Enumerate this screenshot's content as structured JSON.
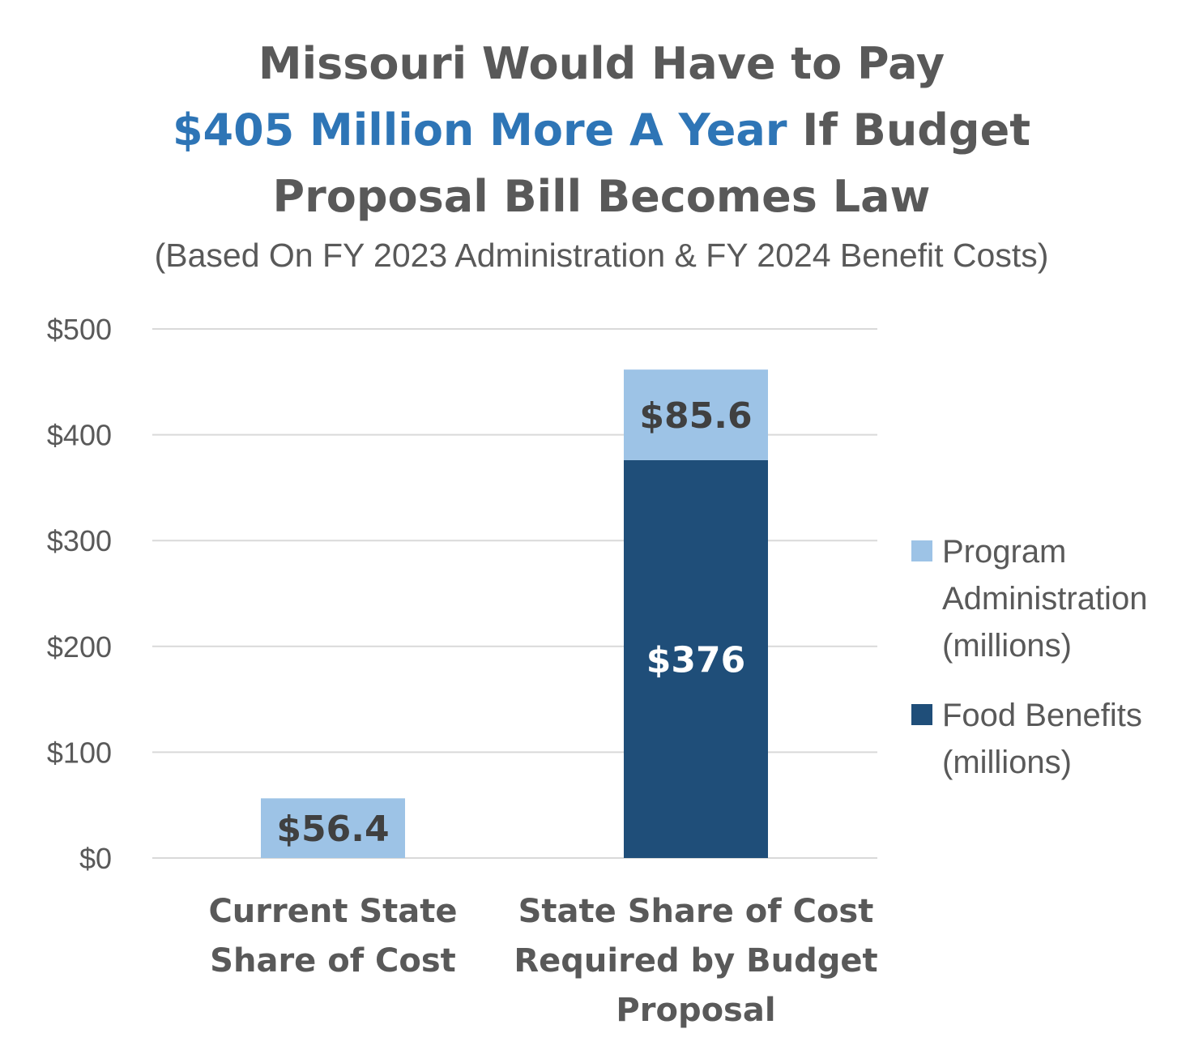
{
  "title": {
    "line1": "Missouri Would Have to Pay",
    "line2_highlight": "$405 Million More A Year",
    "line2_rest": " If Budget",
    "line3": "Proposal Bill Becomes Law"
  },
  "subtitle": "(Based On FY 2023 Administration & FY 2024 Benefit Costs)",
  "colors": {
    "highlight": "#2e75b6",
    "program_administration": "#9dc3e6",
    "food_benefits": "#1f4e79",
    "text": "#595959",
    "grid": "#d9d9d9"
  },
  "chart_data": {
    "type": "bar",
    "stacked": true,
    "categories": [
      [
        "Current State",
        "Share of Cost"
      ],
      [
        "State Share of Cost",
        "Required by Budget",
        "Proposal"
      ]
    ],
    "series": [
      {
        "name": "Food Benefits (millions)",
        "legend_lines": [
          "Food Benefits",
          "(millions)"
        ],
        "values": [
          0,
          376
        ],
        "labels": [
          "",
          "$376"
        ]
      },
      {
        "name": "Program Administration (millions)",
        "legend_lines": [
          "Program",
          "Administration",
          "(millions)"
        ],
        "values": [
          56.4,
          85.6
        ],
        "labels": [
          "$56.4",
          "$85.6"
        ]
      }
    ],
    "yticks": [
      "$0",
      "$100",
      "$200",
      "$300",
      "$400",
      "$500"
    ],
    "ylim": [
      0,
      500
    ],
    "ytick_step": 100,
    "grid": true,
    "legend": "right"
  }
}
